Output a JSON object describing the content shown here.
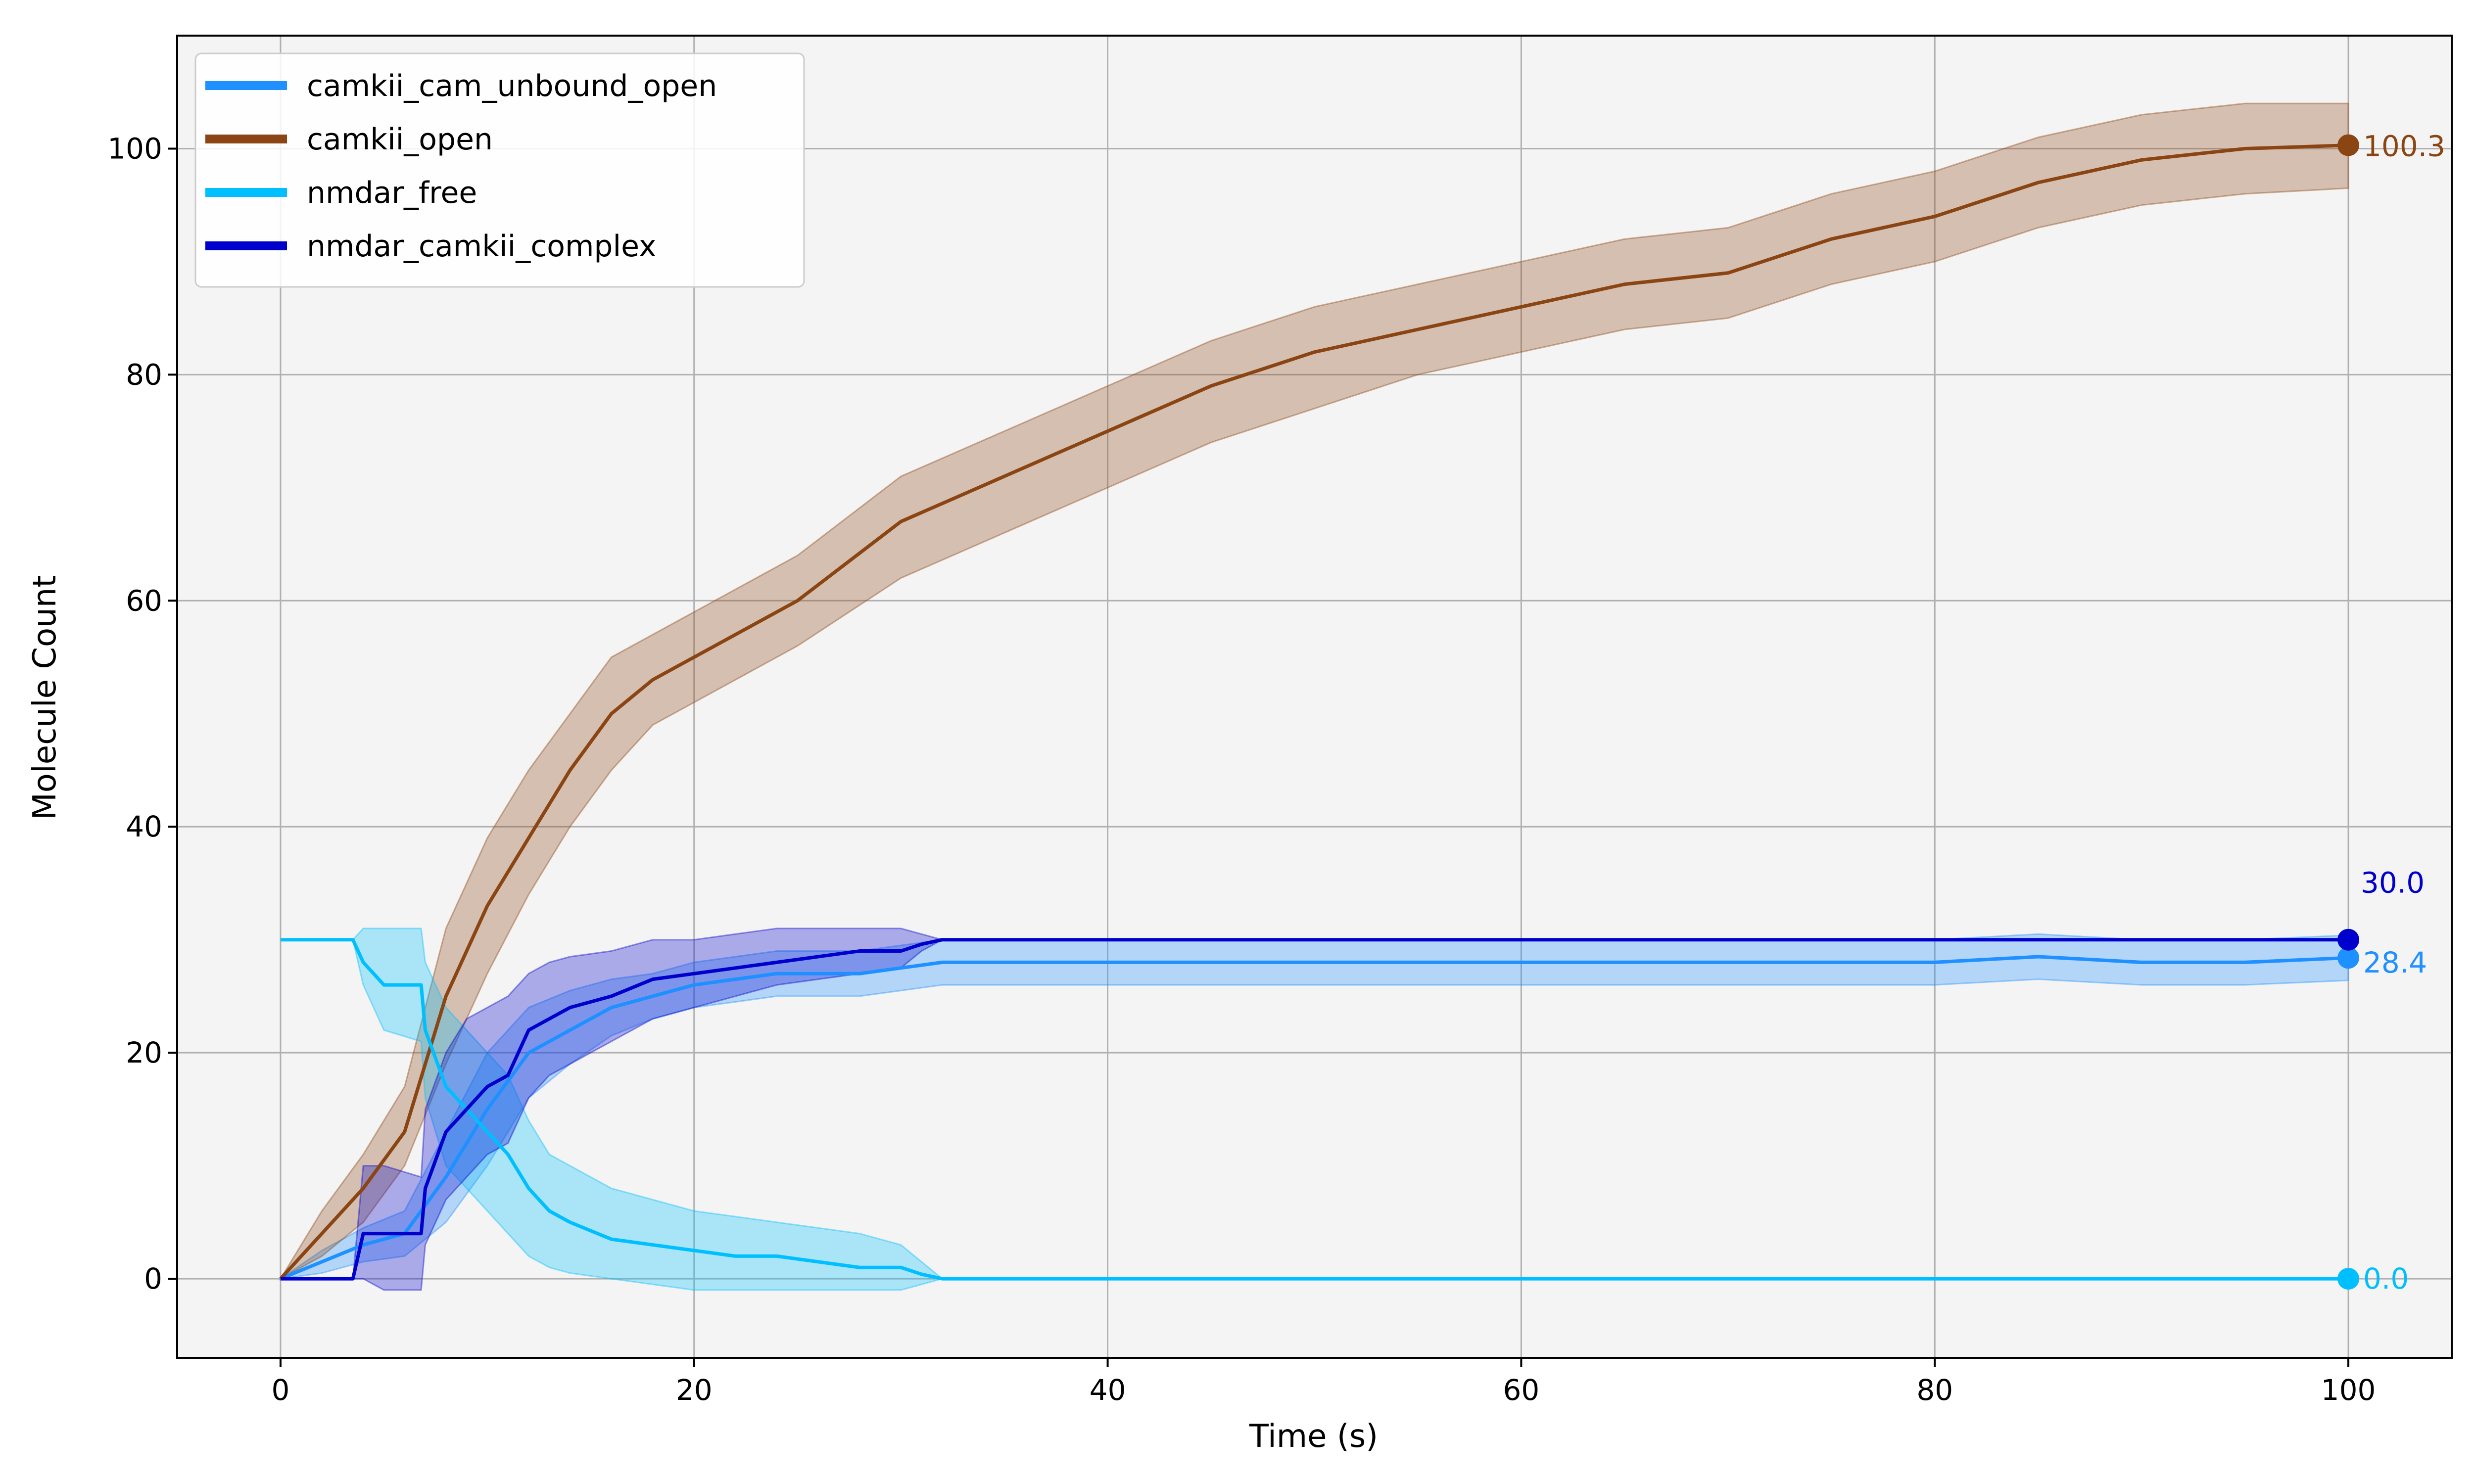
{
  "chart_data": {
    "type": "line",
    "title": "",
    "xlabel": "Time (s)",
    "ylabel": "Molecule Count",
    "xlim": [
      -5,
      105
    ],
    "ylim": [
      -7,
      110
    ],
    "xticks": [
      0,
      20,
      40,
      60,
      80,
      100
    ],
    "yticks": [
      0,
      20,
      40,
      60,
      80,
      100
    ],
    "grid": true,
    "legend_position": "top-left",
    "background": "#f4f4f4",
    "series": [
      {
        "name": "camkii_cam_unbound_open",
        "color": "#1e90ff",
        "final_label": "28.4",
        "x": [
          0,
          2,
          4,
          6,
          8,
          10,
          12,
          14,
          16,
          18,
          20,
          22,
          24,
          26,
          28,
          30,
          32,
          34,
          36,
          38,
          40,
          45,
          50,
          55,
          60,
          65,
          70,
          75,
          80,
          85,
          90,
          95,
          100
        ],
        "y": [
          0,
          1.5,
          3,
          4,
          9,
          15,
          20,
          22,
          24,
          25,
          26,
          26.5,
          27,
          27,
          27,
          27.5,
          28,
          28,
          28,
          28,
          28,
          28,
          28,
          28,
          28,
          28,
          28,
          28,
          28,
          28.5,
          28,
          28,
          28.4
        ],
        "lower": [
          0,
          0.5,
          1.5,
          2,
          5,
          10,
          16,
          19,
          21.5,
          23,
          24,
          24.5,
          25,
          25,
          25,
          25.5,
          26,
          26,
          26,
          26,
          26,
          26,
          26,
          26,
          26,
          26,
          26,
          26,
          26,
          26.5,
          26,
          26,
          26.4
        ],
        "upper": [
          0,
          2.5,
          4.5,
          6,
          13,
          20,
          24,
          25.5,
          26.5,
          27,
          28,
          28.5,
          29,
          29,
          29,
          29.5,
          30,
          30,
          30,
          30,
          30,
          30,
          30,
          30,
          30,
          30,
          30,
          30,
          30,
          30.5,
          30,
          30,
          30.4
        ]
      },
      {
        "name": "camkii_open",
        "color": "#8b4513",
        "final_label": "100.3",
        "x": [
          0,
          2,
          4,
          6,
          8,
          10,
          12,
          14,
          16,
          18,
          20,
          25,
          30,
          35,
          40,
          45,
          50,
          55,
          60,
          65,
          70,
          75,
          80,
          85,
          90,
          95,
          100
        ],
        "y": [
          0,
          4,
          8,
          13,
          25,
          33,
          39,
          45,
          50,
          53,
          55,
          60,
          67,
          71,
          75,
          79,
          82,
          84,
          86,
          88,
          89,
          92,
          94,
          97,
          99,
          100,
          100.3
        ],
        "lower": [
          0,
          2,
          5,
          10,
          19,
          27,
          34,
          40,
          45,
          49,
          51,
          56,
          62,
          66,
          70,
          74,
          77,
          80,
          82,
          84,
          85,
          88,
          90,
          93,
          95,
          96,
          96.5
        ],
        "upper": [
          0,
          6,
          11,
          17,
          31,
          39,
          45,
          50,
          55,
          57,
          59,
          64,
          71,
          75,
          79,
          83,
          86,
          88,
          90,
          92,
          93,
          96,
          98,
          101,
          103,
          104,
          104
        ]
      },
      {
        "name": "nmdar_free",
        "color": "#00bfff",
        "final_label": "0.0",
        "x": [
          0,
          3.5,
          4,
          5,
          6.8,
          7,
          8,
          9,
          10,
          11,
          12,
          13,
          14,
          16,
          18,
          20,
          22,
          24,
          26,
          28,
          30,
          31,
          32,
          40,
          60,
          80,
          100
        ],
        "y": [
          30,
          30,
          28,
          26,
          26,
          22,
          17,
          15,
          13,
          11,
          8,
          6,
          5,
          3.5,
          3,
          2.5,
          2,
          2,
          1.5,
          1,
          1,
          0.4,
          0,
          0,
          0,
          0,
          0
        ],
        "lower": [
          30,
          30,
          26,
          22,
          21,
          16,
          10,
          8,
          6,
          4,
          2,
          1,
          0.5,
          0,
          -0.5,
          -1,
          -1,
          -1,
          -1,
          -1,
          -1,
          -0.5,
          0,
          0,
          0,
          0,
          0
        ],
        "upper": [
          30,
          30,
          31,
          31,
          31,
          28,
          24,
          22,
          20,
          18,
          14,
          11,
          10,
          8,
          7,
          6,
          5.5,
          5,
          4.5,
          4,
          3,
          1.5,
          0,
          0,
          0,
          0,
          0
        ]
      },
      {
        "name": "nmdar_camkii_complex",
        "color": "#0000cd",
        "final_label": "30.0",
        "x": [
          0,
          3.5,
          4,
          5,
          6.8,
          7,
          8,
          9,
          10,
          11,
          12,
          13,
          14,
          16,
          18,
          20,
          22,
          24,
          26,
          28,
          30,
          31,
          32,
          40,
          60,
          80,
          100
        ],
        "y": [
          0,
          0,
          4,
          4,
          4,
          8,
          13,
          15,
          17,
          18,
          22,
          23,
          24,
          25,
          26.5,
          27,
          27.5,
          28,
          28.5,
          29,
          29,
          29.6,
          30,
          30,
          30,
          30,
          30
        ],
        "lower": [
          0,
          0,
          0,
          -1,
          -1,
          3,
          7,
          9,
          11,
          12,
          16,
          18,
          19,
          21,
          23,
          24,
          25,
          26,
          26.5,
          27,
          27.5,
          29,
          30,
          30,
          30,
          30,
          30
        ],
        "upper": [
          0,
          0,
          10,
          10,
          9,
          15,
          20,
          23,
          24,
          25,
          27,
          28,
          28.5,
          29,
          30,
          30,
          30.5,
          31,
          31,
          31,
          31,
          30.5,
          30,
          30,
          30,
          30,
          30
        ]
      }
    ]
  }
}
